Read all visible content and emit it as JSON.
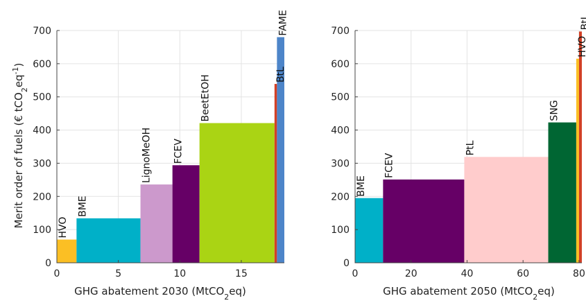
{
  "chart_data": [
    {
      "type": "bar",
      "xlabel": "GHG abatement 2030 (MtCO",
      "xlabel_sub": "2",
      "xlabel_tail": "eq)",
      "ylabel_pre": "Merit order of fuels (€ tCO",
      "ylabel_sub": "2",
      "ylabel_mid": "eq",
      "ylabel_sup": "-1",
      "ylabel_post": ")",
      "xlim": [
        0,
        18.5
      ],
      "ylim": [
        0,
        700
      ],
      "xticks": [
        0,
        5,
        10,
        15
      ],
      "yticks": [
        0,
        100,
        200,
        300,
        400,
        500,
        600,
        700
      ],
      "grid": true,
      "bars": [
        {
          "label": "HVO",
          "x0": 0,
          "x1": 1.6,
          "value": 70,
          "color": "#fbbf24"
        },
        {
          "label": "BME",
          "x0": 1.6,
          "x1": 6.8,
          "value": 134,
          "color": "#00b0c8"
        },
        {
          "label": "LignoMeOH",
          "x0": 6.8,
          "x1": 9.4,
          "value": 236,
          "color": "#cc99cc"
        },
        {
          "label": "FCEV",
          "x0": 9.4,
          "x1": 11.6,
          "value": 294,
          "color": "#660066"
        },
        {
          "label": "BeetEtOH",
          "x0": 11.6,
          "x1": 17.7,
          "value": 421,
          "color": "#aad414"
        },
        {
          "label": "BtL",
          "x0": 17.7,
          "x1": 17.9,
          "value": 539,
          "color": "#d24026"
        },
        {
          "label": "FAME",
          "x0": 17.9,
          "x1": 18.5,
          "value": 680,
          "color": "#4d85c9"
        }
      ]
    },
    {
      "type": "bar",
      "xlabel": "GHG abatement 2050 (MtCO",
      "xlabel_sub": "2",
      "xlabel_tail": "eq)",
      "xlim": [
        0,
        81
      ],
      "ylim": [
        0,
        700
      ],
      "xticks": [
        0,
        20,
        40,
        60,
        80
      ],
      "yticks": [
        0,
        100,
        200,
        300,
        400,
        500,
        600,
        700
      ],
      "grid": true,
      "bars": [
        {
          "label": "BME",
          "x0": 0,
          "x1": 10,
          "value": 195,
          "color": "#00b0c8"
        },
        {
          "label": "FCEV",
          "x0": 10,
          "x1": 39,
          "value": 251,
          "color": "#660066"
        },
        {
          "label": "PtL",
          "x0": 39,
          "x1": 69,
          "value": 319,
          "color": "#ffcccc"
        },
        {
          "label": "SNG",
          "x0": 69,
          "x1": 79,
          "value": 423,
          "color": "#006633"
        },
        {
          "label": "HVO",
          "x0": 79,
          "x1": 80,
          "value": 615,
          "color": "#fbbf24"
        },
        {
          "label": "BtL",
          "x0": 80,
          "x1": 81,
          "value": 697,
          "color": "#d24026"
        }
      ]
    }
  ]
}
